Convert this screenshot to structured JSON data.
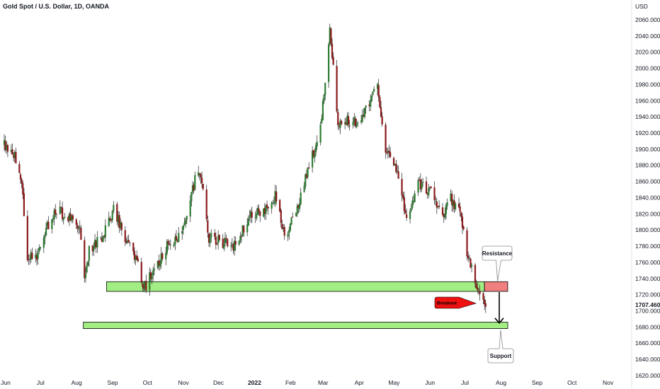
{
  "chart_data": {
    "type": "candlestick",
    "title": "Gold Spot / U.S. Dollar, 1D, OANDA",
    "currency": "USD",
    "ylim": [
      1615,
      2075
    ],
    "y_ticks": [
      "2060.000",
      "2040.000",
      "2020.000",
      "2000.000",
      "1980.000",
      "1960.000",
      "1940.000",
      "1920.000",
      "1900.000",
      "1880.000",
      "1860.000",
      "1840.000",
      "1820.000",
      "1800.000",
      "1780.000",
      "1760.000",
      "1740.000",
      "1720.000",
      "1707.460",
      "1700.000",
      "1680.000",
      "1660.000",
      "1640.000",
      "1620.000"
    ],
    "x_ticks": [
      "Jun",
      "Jul",
      "Aug",
      "Sep",
      "Oct",
      "Nov",
      "Dec",
      "2022",
      "Feb",
      "Mar",
      "Apr",
      "May",
      "Jun",
      "Jul",
      "Aug",
      "Sep",
      "Oct",
      "Nov"
    ],
    "x_tick_bold": "2022",
    "current_price": "1707.460",
    "price_path": [
      [
        "2021-06-01",
        1905
      ],
      [
        "2021-06-10",
        1895
      ],
      [
        "2021-06-16",
        1860
      ],
      [
        "2021-06-20",
        1770
      ],
      [
        "2021-06-29",
        1765
      ],
      [
        "2021-07-08",
        1805
      ],
      [
        "2021-07-15",
        1825
      ],
      [
        "2021-07-28",
        1815
      ],
      [
        "2021-08-05",
        1805
      ],
      [
        "2021-08-09",
        1745
      ],
      [
        "2021-08-13",
        1775
      ],
      [
        "2021-08-25",
        1792
      ],
      [
        "2021-09-03",
        1825
      ],
      [
        "2021-09-12",
        1795
      ],
      [
        "2021-09-24",
        1755
      ],
      [
        "2021-09-29",
        1726
      ],
      [
        "2021-10-10",
        1758
      ],
      [
        "2021-10-20",
        1782
      ],
      [
        "2021-10-29",
        1792
      ],
      [
        "2021-11-05",
        1815
      ],
      [
        "2021-11-12",
        1862
      ],
      [
        "2021-11-17",
        1868
      ],
      [
        "2021-11-24",
        1790
      ],
      [
        "2021-12-05",
        1785
      ],
      [
        "2021-12-15",
        1780
      ],
      [
        "2021-12-31",
        1820
      ],
      [
        "2022-01-12",
        1825
      ],
      [
        "2022-01-20",
        1842
      ],
      [
        "2022-01-28",
        1790
      ],
      [
        "2022-02-08",
        1825
      ],
      [
        "2022-02-16",
        1870
      ],
      [
        "2022-02-24",
        1905
      ],
      [
        "2022-03-01",
        1940
      ],
      [
        "2022-03-08",
        2050
      ],
      [
        "2022-03-15",
        1930
      ],
      [
        "2022-03-22",
        1935
      ],
      [
        "2022-03-31",
        1935
      ],
      [
        "2022-04-11",
        1955
      ],
      [
        "2022-04-18",
        1980
      ],
      [
        "2022-04-25",
        1900
      ],
      [
        "2022-05-05",
        1875
      ],
      [
        "2022-05-13",
        1810
      ],
      [
        "2022-05-23",
        1855
      ],
      [
        "2022-06-01",
        1850
      ],
      [
        "2022-06-13",
        1820
      ],
      [
        "2022-06-20",
        1840
      ],
      [
        "2022-06-28",
        1820
      ],
      [
        "2022-07-05",
        1765
      ],
      [
        "2022-07-12",
        1730
      ],
      [
        "2022-07-20",
        1710
      ]
    ],
    "annotations": {
      "resistance_label": "Resistance",
      "support_label": "Support",
      "breakout_label": "Breakout",
      "upper_zone": {
        "from": "2021-08-28",
        "to": "2022-07-19",
        "low": 1724,
        "high": 1736
      },
      "resistance_zone": {
        "from": "2022-07-19",
        "to": "2022-08-08",
        "low": 1724,
        "high": 1736
      },
      "lower_zone": {
        "from": "2021-08-08",
        "to": "2022-08-08",
        "low": 1678,
        "high": 1686
      },
      "target_price": 1684
    },
    "colors": {
      "up": "#2e7d32",
      "down": "#8b1a1a",
      "zone_green": "#a2ee84",
      "zone_red": "#f08080",
      "breakout_red": "#ee1111",
      "axis_text": "#131722"
    }
  }
}
